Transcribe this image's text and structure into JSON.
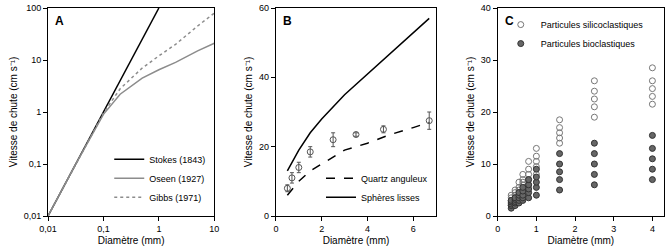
{
  "chart_data": [
    {
      "type": "line",
      "title": "A",
      "log": true,
      "grid": false,
      "legend": "lower right",
      "xlabel": "Diamètre (mm)",
      "ylabel": "Vitesse de chute (cm s⁻¹)",
      "xlim": [
        0.01,
        10
      ],
      "ylim": [
        0.01,
        100
      ],
      "xticks": [
        {
          "value": 0.01,
          "label": "0,01"
        },
        {
          "value": 0.1,
          "label": "0,1"
        },
        1,
        10
      ],
      "yticks": [
        {
          "value": 0.01,
          "label": "0,01"
        },
        {
          "value": 0.1,
          "label": "0,1"
        },
        1,
        10,
        100
      ],
      "series": [
        {
          "name": "Stokes (1843)",
          "color": "#000000",
          "line_style": "solid",
          "x": [
            0.01,
            0.03,
            0.1,
            0.2,
            0.5,
            1
          ],
          "values": [
            0.01,
            0.09,
            1,
            4,
            25,
            100
          ]
        },
        {
          "name": "Oseen (1927)",
          "color": "#8c8c8c",
          "line_style": "solid",
          "x": [
            0.01,
            0.03,
            0.1,
            0.2,
            0.5,
            1,
            2,
            5,
            10
          ],
          "values": [
            0.01,
            0.09,
            0.9,
            2.2,
            4.5,
            6.5,
            9,
            15,
            21
          ]
        },
        {
          "name": "Gibbs (1971)",
          "color": "#8c8c8c",
          "line_style": "dotted",
          "x": [
            0.01,
            0.03,
            0.1,
            0.2,
            0.5,
            1,
            2,
            5,
            10
          ],
          "values": [
            0.01,
            0.09,
            0.95,
            2.8,
            7,
            12,
            20,
            45,
            80
          ]
        }
      ]
    },
    {
      "type": "line",
      "title": "B",
      "grid": false,
      "legend": "lower right",
      "xlabel": "Diamètre (mm)",
      "ylabel": "Vitesse de chute (cm s⁻¹)",
      "xlim": [
        0,
        7
      ],
      "ylim": [
        0,
        60
      ],
      "xticks": [
        0,
        2,
        4,
        6
      ],
      "yticks": [
        0,
        20,
        40,
        60
      ],
      "series": [
        {
          "type": "scatter",
          "color": "#555555",
          "marker": "open_circle",
          "x": [
            0.5,
            0.7,
            1.0,
            1.5,
            2.5,
            3.5,
            4.7,
            6.7
          ],
          "values": [
            8,
            11,
            14,
            18.5,
            22,
            23.5,
            25,
            27.5
          ],
          "errors": [
            1,
            1.5,
            1.5,
            1.5,
            2,
            0.5,
            1,
            2.5
          ]
        },
        {
          "name": "Quartz anguleux",
          "color": "#000000",
          "line_style": "dashed",
          "x": [
            0.5,
            1,
            1.5,
            2,
            3,
            4,
            5,
            6,
            6.7
          ],
          "values": [
            6,
            10,
            13,
            15,
            19,
            21,
            23.5,
            25.5,
            27
          ]
        },
        {
          "name": "Sphères lisses",
          "color": "#000000",
          "line_style": "solid",
          "x": [
            0.5,
            1,
            1.5,
            2,
            3,
            4,
            5,
            6,
            6.7
          ],
          "values": [
            13,
            19,
            24,
            28,
            35,
            41,
            47,
            53,
            57
          ]
        }
      ]
    },
    {
      "type": "scatter",
      "title": "C",
      "grid": false,
      "legend": "upper left",
      "xlabel": "Diamètre (mm)",
      "ylabel": "Vitesse de chute (cm s⁻¹)",
      "xlim": [
        0,
        4.3
      ],
      "ylim": [
        0,
        40
      ],
      "xticks": [
        0,
        1,
        2,
        3,
        4
      ],
      "yticks": [
        0,
        10,
        20,
        30,
        40
      ],
      "series": [
        {
          "name": "Particules silicoclastiques",
          "color": "#777777",
          "marker": "open_circle",
          "x": [
            0.35,
            0.35,
            0.35,
            0.35,
            0.35,
            0.45,
            0.45,
            0.45,
            0.45,
            0.45,
            0.55,
            0.55,
            0.55,
            0.55,
            0.55,
            0.65,
            0.65,
            0.65,
            0.65,
            0.65,
            0.8,
            0.8,
            0.8,
            0.8,
            0.8,
            1.0,
            1.0,
            1.0,
            1.0,
            1.0,
            1.6,
            1.6,
            1.6,
            1.6,
            1.6,
            2.5,
            2.5,
            2.5,
            2.5,
            2.5,
            4.0,
            4.0,
            4.0,
            4.0,
            4.0
          ],
          "values": [
            2,
            2.5,
            3,
            3.5,
            4,
            3,
            3.5,
            4,
            4.5,
            5,
            4,
            4.5,
            5,
            5.5,
            6.5,
            5,
            6,
            6.5,
            7,
            8,
            6,
            7,
            8,
            9,
            10.5,
            8,
            9.5,
            10.5,
            11.5,
            13,
            14,
            15,
            16,
            17,
            18.5,
            19,
            21,
            22.5,
            24,
            26,
            21.5,
            23,
            24.5,
            26,
            28.5
          ]
        },
        {
          "name": "Particules bioclastiques",
          "color": "#666666",
          "marker": "circle",
          "x": [
            0.35,
            0.35,
            0.35,
            0.35,
            0.35,
            0.45,
            0.45,
            0.45,
            0.45,
            0.45,
            0.55,
            0.55,
            0.55,
            0.55,
            0.55,
            0.65,
            0.65,
            0.65,
            0.65,
            0.65,
            0.8,
            0.8,
            0.8,
            0.8,
            0.8,
            1.0,
            1.0,
            1.0,
            1.0,
            1.0,
            1.6,
            1.6,
            1.6,
            1.6,
            1.6,
            2.5,
            2.5,
            2.5,
            2.5,
            2.5,
            4.0,
            4.0,
            4.0,
            4.0,
            4.0
          ],
          "values": [
            1.5,
            2,
            2.3,
            2.7,
            3,
            2,
            2.5,
            2.8,
            3.2,
            3.5,
            2.5,
            3,
            3.5,
            4,
            4.5,
            3,
            3.5,
            4,
            4.8,
            5.5,
            3.5,
            4.5,
            5.2,
            6,
            7,
            4,
            5.5,
            6.5,
            7.5,
            9,
            5,
            7,
            8.5,
            10,
            12,
            6,
            8,
            10,
            12,
            14,
            7,
            9,
            11,
            13,
            15.5
          ]
        }
      ]
    }
  ]
}
